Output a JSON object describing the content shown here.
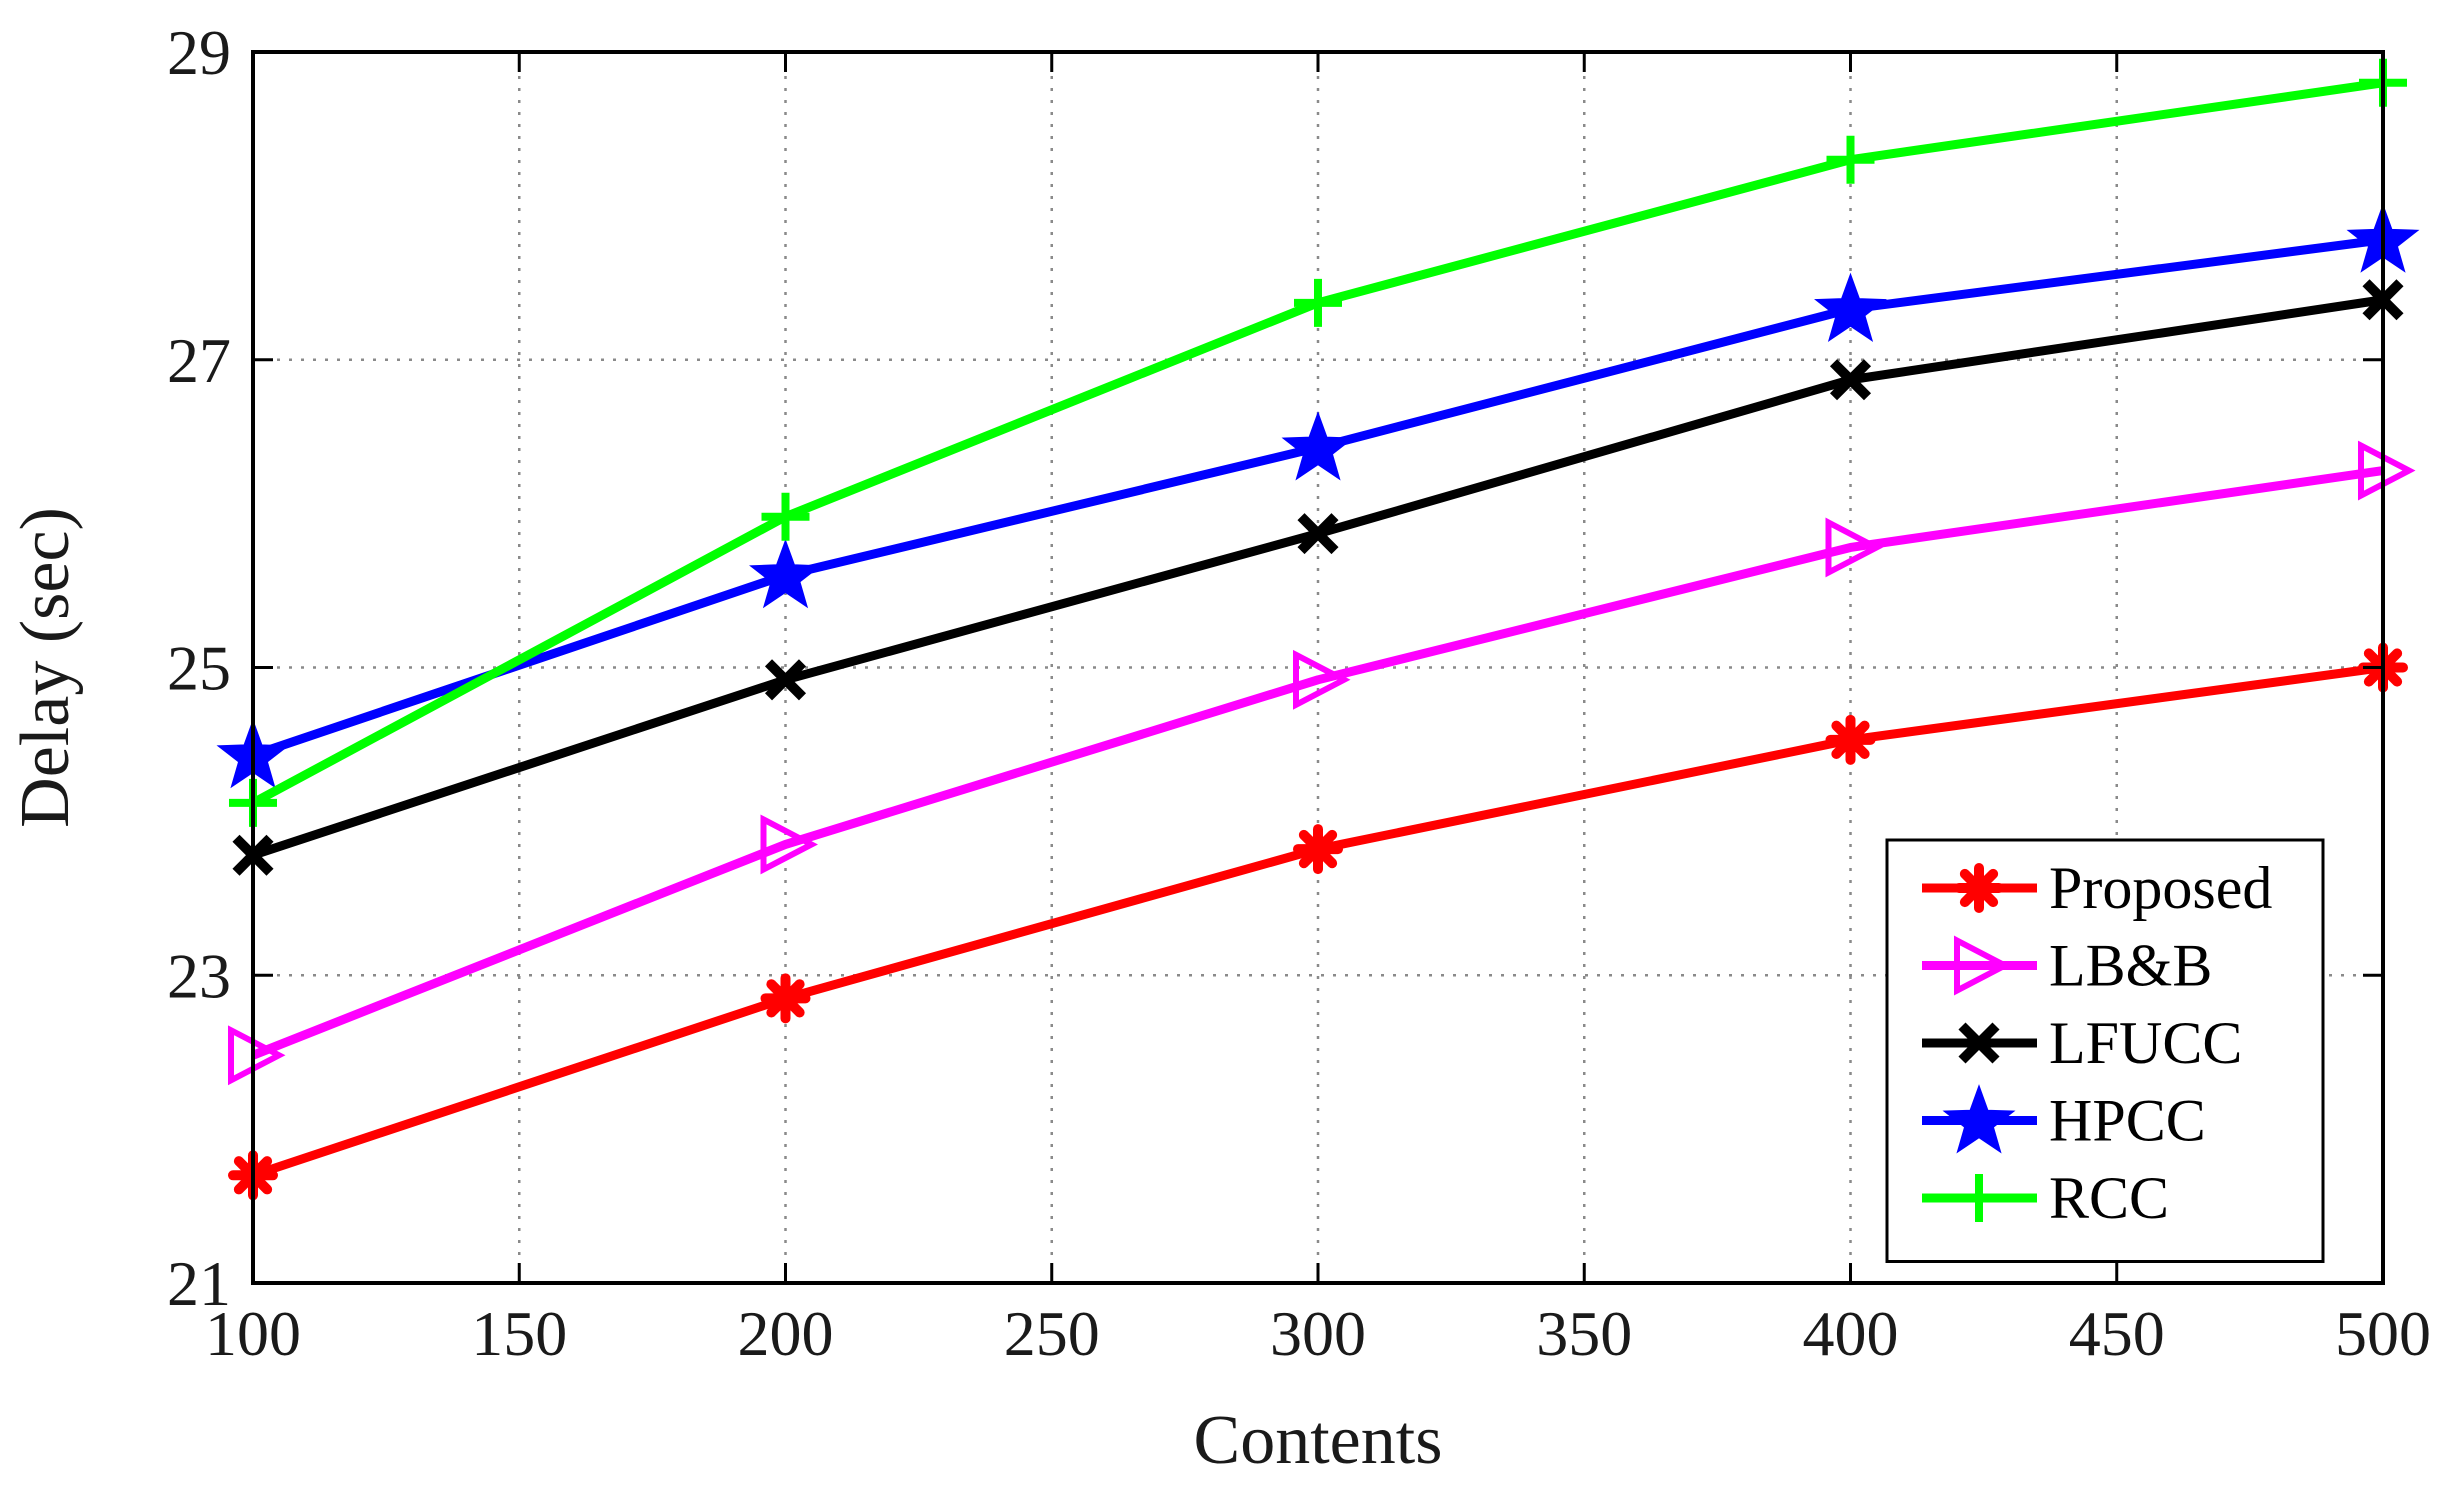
{
  "chart_data": {
    "type": "line",
    "xlabel": "Contents",
    "ylabel": "Delay (sec)",
    "xlim": [
      100,
      500
    ],
    "ylim": [
      21,
      29
    ],
    "xticks": [
      100,
      150,
      200,
      250,
      300,
      350,
      400,
      450,
      500
    ],
    "yticks": [
      21,
      23,
      25,
      27,
      29
    ],
    "grid": true,
    "legend_position": "bottom-right",
    "x": [
      100,
      200,
      300,
      400,
      500
    ],
    "series": [
      {
        "name": "Proposed",
        "color": "#ff0000",
        "marker": "asterisk",
        "values": [
          21.7,
          22.85,
          23.82,
          24.53,
          25.0
        ]
      },
      {
        "name": "LB&B",
        "color": "#ff00ff",
        "marker": "triangle-right",
        "values": [
          22.48,
          23.85,
          24.92,
          25.78,
          26.28
        ]
      },
      {
        "name": "LFUCC",
        "color": "#000000",
        "marker": "x",
        "values": [
          23.78,
          24.92,
          25.87,
          26.87,
          27.39
        ]
      },
      {
        "name": "HPCC",
        "color": "#0000ff",
        "marker": "star",
        "values": [
          24.43,
          25.6,
          26.43,
          27.33,
          27.78
        ]
      },
      {
        "name": "RCC",
        "color": "#00ff00",
        "marker": "plus",
        "values": [
          24.12,
          25.98,
          27.37,
          28.3,
          28.8
        ]
      }
    ]
  }
}
